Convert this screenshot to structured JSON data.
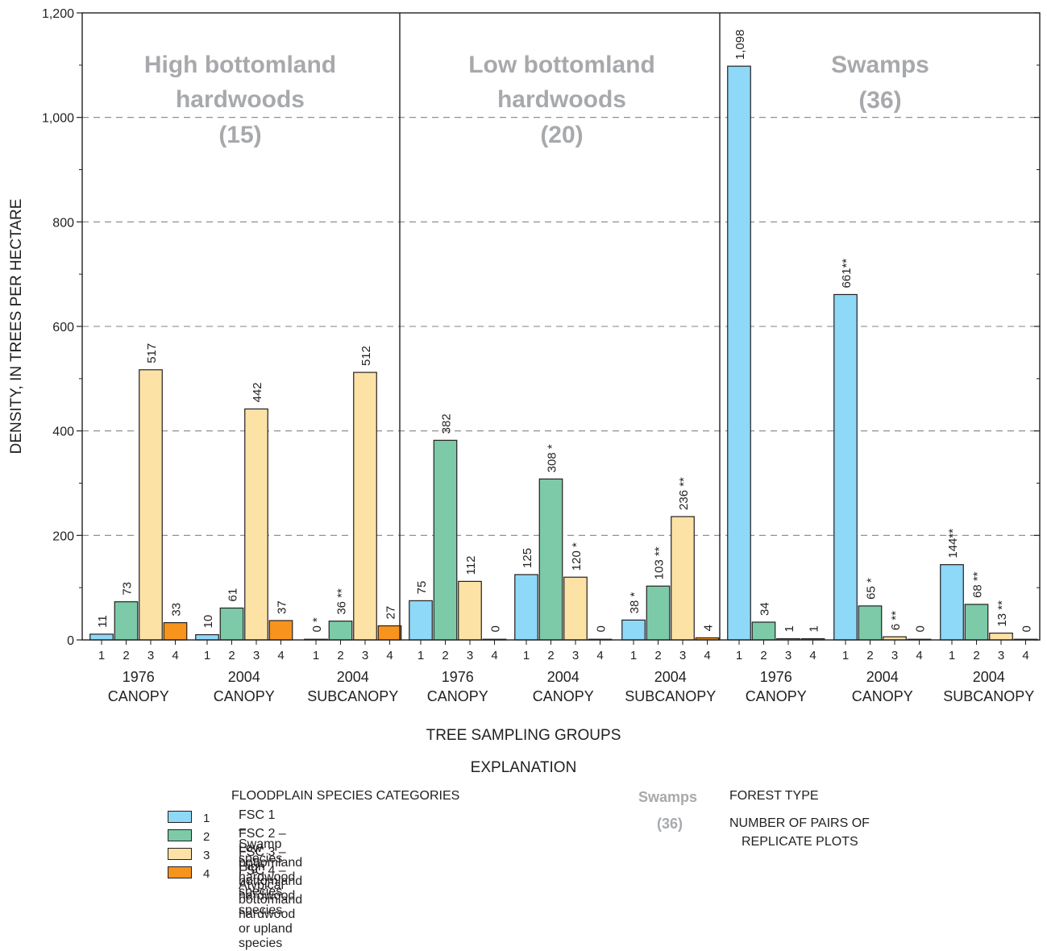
{
  "chart_data": {
    "type": "bar",
    "ylabel": "DENSITY, IN TREES PER HECTARE",
    "xlabel": "TREE SAMPLING GROUPS",
    "ylim": [
      0,
      1200
    ],
    "yticks": [
      0,
      200,
      400,
      600,
      800,
      1000,
      1200
    ],
    "ytick_labels": [
      "0",
      "200",
      "400",
      "600",
      "800",
      "1,000",
      "1,200"
    ],
    "grid": "horizontal dashed",
    "category_tick_labels": [
      "1",
      "2",
      "3",
      "4"
    ],
    "panels": [
      {
        "forest_type": "High bottomland\nhardwoods",
        "pairs": "(15)",
        "groups": [
          {
            "year": "1976",
            "layer": "CANOPY",
            "values": [
              11,
              73,
              517,
              33
            ],
            "labels": [
              "11",
              "73",
              "517",
              "33"
            ]
          },
          {
            "year": "2004",
            "layer": "CANOPY",
            "values": [
              10,
              61,
              442,
              37
            ],
            "labels": [
              "10",
              "61",
              "442",
              "37"
            ]
          },
          {
            "year": "2004",
            "layer": "SUBCANOPY",
            "values": [
              0,
              36,
              512,
              27
            ],
            "labels": [
              "0 *",
              "36 **",
              "512",
              "27"
            ]
          }
        ]
      },
      {
        "forest_type": "Low bottomland\nhardwoods",
        "pairs": "(20)",
        "groups": [
          {
            "year": "1976",
            "layer": "CANOPY",
            "values": [
              75,
              382,
              112,
              0
            ],
            "labels": [
              "75",
              "382",
              "112",
              "0"
            ]
          },
          {
            "year": "2004",
            "layer": "CANOPY",
            "values": [
              125,
              308,
              120,
              0
            ],
            "labels": [
              "125",
              "308 *",
              "120 *",
              "0"
            ]
          },
          {
            "year": "2004",
            "layer": "SUBCANOPY",
            "values": [
              38,
              103,
              236,
              4
            ],
            "labels": [
              "38 *",
              "103 **",
              "236 **",
              "4"
            ]
          }
        ]
      },
      {
        "forest_type": "Swamps",
        "pairs": "(36)",
        "groups": [
          {
            "year": "1976",
            "layer": "CANOPY",
            "values": [
              1098,
              34,
              1,
              1
            ],
            "labels": [
              "1,098",
              "34",
              "1",
              "1"
            ]
          },
          {
            "year": "2004",
            "layer": "CANOPY",
            "values": [
              661,
              65,
              6,
              0
            ],
            "labels": [
              "661**",
              "65 *",
              "6 **",
              "0"
            ]
          },
          {
            "year": "2004",
            "layer": "SUBCANOPY",
            "values": [
              144,
              68,
              13,
              0
            ],
            "labels": [
              "144**",
              "68 **",
              "13 **",
              "0"
            ]
          }
        ]
      }
    ],
    "series": [
      {
        "name": "FSC 1 – Swamp species",
        "color": "#8ed8f8"
      },
      {
        "name": "FSC 2 – Low bottomland hardwood species",
        "color": "#7ccaa8"
      },
      {
        "name": "FSC 3 – High bottomland hardwood species",
        "color": "#fde2a6"
      },
      {
        "name": "FSC 4 – Atypical bottomland hardwood or upland species",
        "color": "#f7941d"
      }
    ]
  },
  "explanation": {
    "title": "EXPLANATION",
    "legend_heading": "FLOODPLAIN SPECIES CATEGORIES",
    "legend_items": [
      {
        "num": "1",
        "text": "FSC 1 – Swamp species",
        "color": "#8ed8f8"
      },
      {
        "num": "2",
        "text": "FSC 2 – Low bottomland hardwood species",
        "color": "#7ccaa8"
      },
      {
        "num": "3",
        "text": "FSC 3 – High bottomland hardwood species",
        "color": "#fde2a6"
      },
      {
        "num": "4",
        "text": "FSC 4 – Atypical bottomland hardwood or upland species",
        "color": "#f7941d"
      }
    ],
    "forest_type_example": "Swamps",
    "pairs_example": "(36)",
    "forest_type_label": "FOREST TYPE",
    "pairs_label_line1": "NUMBER OF PAIRS OF",
    "pairs_label_line2": "REPLICATE PLOTS"
  },
  "colors": {
    "panel_title": "#a7a9ac",
    "grid": "#808285",
    "axis": "#231f20"
  }
}
